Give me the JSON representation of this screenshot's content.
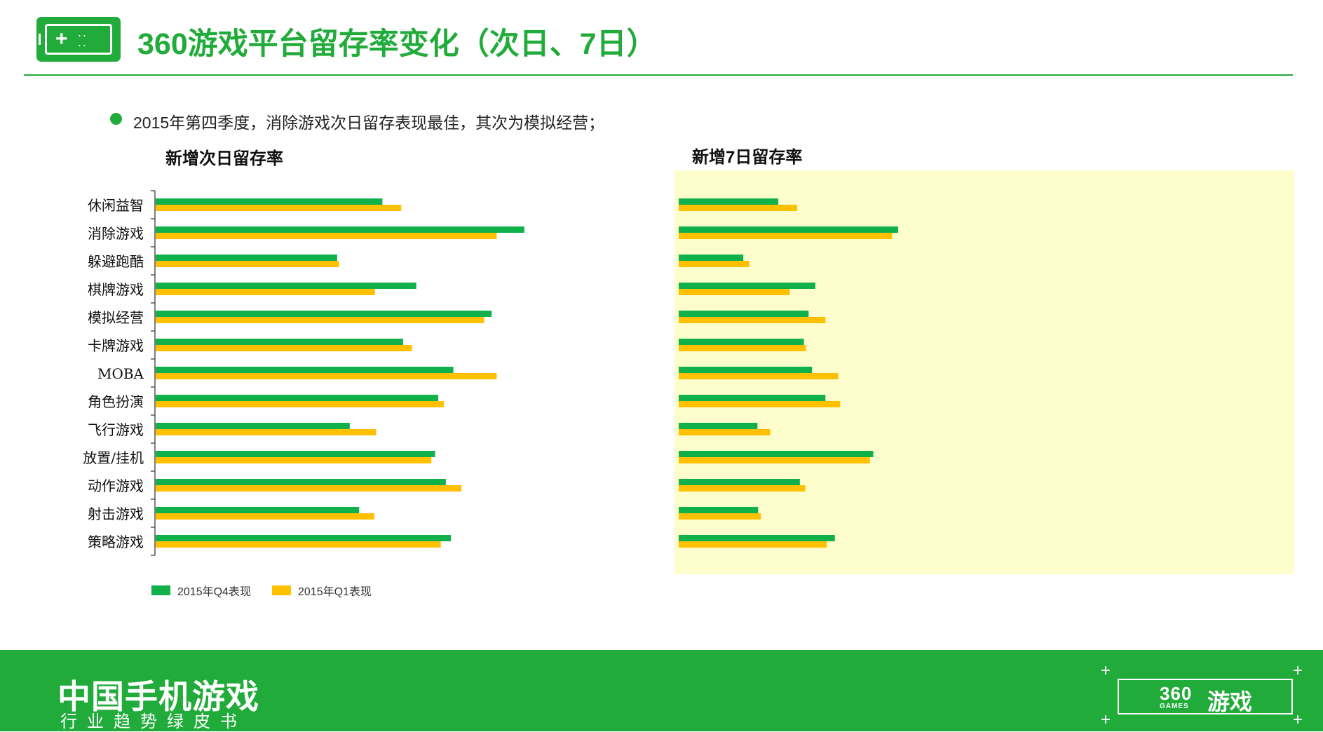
{
  "header": {
    "title": "360游戏平台留存率变化（次日、7日）",
    "logo_icon": "gamepad-icon"
  },
  "bullet": {
    "text": "2015年第四季度，消除游戏次日留存表现最佳，其次为模拟经营；"
  },
  "colors": {
    "brand_green": "#21ab3a",
    "series_q4": "#10b04a",
    "series_q1": "#ffc000",
    "panel_bg": "#fefecc"
  },
  "legend": {
    "q4": "2015年Q4表现",
    "q1": "2015年Q1表现"
  },
  "chart_data": [
    {
      "type": "bar",
      "orientation": "horizontal",
      "title": "新增次日留存率",
      "categories": [
        "休闲益智",
        "消除游戏",
        "躲避跑酷",
        "棋牌游戏",
        "模拟经营",
        "卡牌游戏",
        "MOBA",
        "角色扮演",
        "飞行游戏",
        "放置/挂机",
        "动作游戏",
        "射击游戏",
        "策略游戏"
      ],
      "series": [
        {
          "name": "2015年Q4表现",
          "values": [
            0.361,
            0.587,
            0.289,
            0.415,
            0.535,
            0.394,
            0.474,
            0.45,
            0.309,
            0.445,
            0.462,
            0.324,
            0.47
          ]
        },
        {
          "name": "2015年Q1表现",
          "values": [
            0.391,
            0.543,
            0.292,
            0.349,
            0.523,
            0.408,
            0.543,
            0.459,
            0.351,
            0.439,
            0.487,
            0.348,
            0.454
          ]
        }
      ],
      "xlim": [
        0,
        0.72
      ],
      "grid": false,
      "legend": "bottom-left"
    },
    {
      "type": "bar",
      "orientation": "horizontal",
      "title": "新增7日留存率",
      "categories": [
        "休闲益智",
        "消除游戏",
        "躲避跑酷",
        "棋牌游戏",
        "模拟经营",
        "卡牌游戏",
        "MOBA",
        "角色扮演",
        "飞行游戏",
        "放置/挂机",
        "动作游戏",
        "射击游戏",
        "策略游戏"
      ],
      "series": [
        {
          "name": "2015年Q4表现",
          "values": [
            0.148,
            0.326,
            0.096,
            0.203,
            0.193,
            0.186,
            0.198,
            0.218,
            0.117,
            0.289,
            0.18,
            0.118,
            0.232
          ]
        },
        {
          "name": "2015年Q1表现",
          "values": [
            0.176,
            0.317,
            0.105,
            0.165,
            0.218,
            0.189,
            0.237,
            0.24,
            0.136,
            0.284,
            0.188,
            0.122,
            0.22
          ]
        }
      ],
      "xlim": [
        0,
        0.88
      ],
      "grid": false,
      "legend": "none"
    }
  ],
  "footer": {
    "title": "中国手机游戏",
    "subtitle": "行业趋势绿皮书",
    "brand_num": "360",
    "brand_games": "GAMES",
    "brand_cn": "游戏"
  }
}
